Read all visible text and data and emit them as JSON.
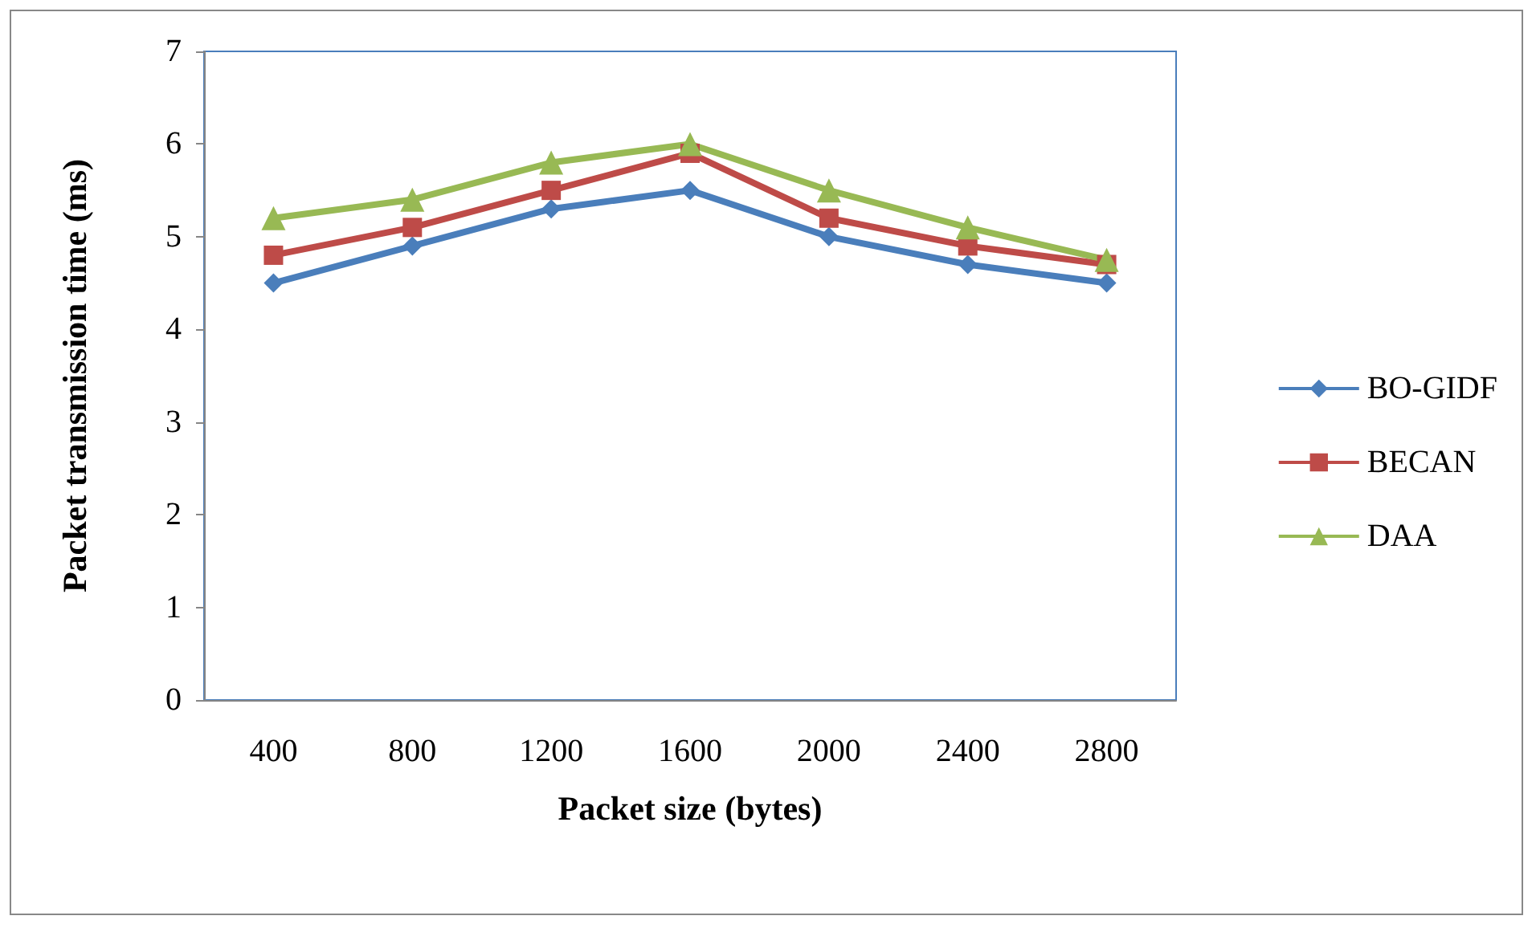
{
  "chart_data": {
    "type": "line",
    "xlabel": "Packet size (bytes)",
    "ylabel": "Packet transmission time (ms)",
    "categories": [
      "400",
      "800",
      "1200",
      "1600",
      "2000",
      "2400",
      "2800"
    ],
    "ylim": [
      0,
      7
    ],
    "yticks": [
      0,
      1,
      2,
      3,
      4,
      5,
      6,
      7
    ],
    "grid": false,
    "legend": "right",
    "line_style": "solid",
    "series": [
      {
        "name": "BO-GIDF",
        "color": "#4a7ebb",
        "marker": "diamond",
        "values": [
          4.5,
          4.9,
          5.3,
          5.5,
          5.0,
          4.7,
          4.5
        ]
      },
      {
        "name": "BECAN",
        "color": "#be4b48",
        "marker": "square",
        "values": [
          4.8,
          5.1,
          5.5,
          5.9,
          5.2,
          4.9,
          4.7
        ]
      },
      {
        "name": "DAA",
        "color": "#98b954",
        "marker": "triangle",
        "values": [
          5.2,
          5.4,
          5.8,
          6.0,
          5.5,
          5.1,
          4.75
        ]
      }
    ]
  }
}
